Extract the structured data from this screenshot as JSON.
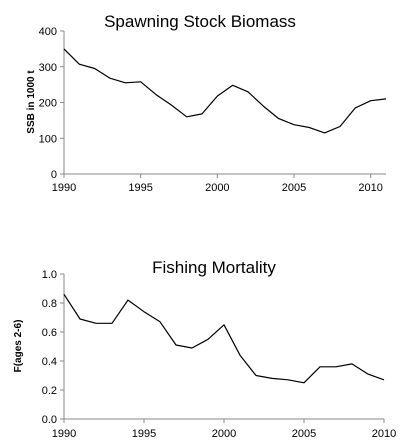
{
  "chart_data": [
    {
      "type": "line",
      "title": "Spawning Stock Biomass",
      "xlabel": "",
      "ylabel": "SSB in 1000 t",
      "xlim": [
        1990,
        2011
      ],
      "ylim": [
        0,
        400
      ],
      "x_ticks": [
        1990,
        1995,
        2000,
        2005,
        2010
      ],
      "y_ticks": [
        0,
        100,
        200,
        300,
        400
      ],
      "x_tick_labels": [
        "1990",
        "1995",
        "2000",
        "2005",
        "2010"
      ],
      "y_tick_labels": [
        "0",
        "100",
        "200",
        "300",
        "400"
      ],
      "grid": false,
      "legend": "none",
      "line_color": "#000000",
      "x": [
        1990,
        1991,
        1992,
        1993,
        1994,
        1995,
        1996,
        1997,
        1998,
        1999,
        2000,
        2001,
        2002,
        2003,
        2004,
        2005,
        2006,
        2007,
        2008,
        2009,
        2010,
        2011
      ],
      "values": [
        350,
        307,
        295,
        268,
        255,
        258,
        222,
        193,
        160,
        168,
        218,
        248,
        230,
        190,
        155,
        138,
        130,
        115,
        133,
        185,
        205,
        210
      ]
    },
    {
      "type": "line",
      "title": "Fishing Mortality",
      "xlabel": "",
      "ylabel": "F(ages 2-6)",
      "xlim": [
        1990,
        2010
      ],
      "ylim": [
        0,
        1.0
      ],
      "x_ticks": [
        1990,
        1995,
        2000,
        2005,
        2010
      ],
      "y_ticks": [
        0,
        0.2,
        0.4,
        0.6,
        0.8,
        1.0
      ],
      "x_tick_labels": [
        "1990",
        "1995",
        "2000",
        "2005",
        "2010"
      ],
      "y_tick_labels": [
        "0.0",
        "0.2",
        "0.4",
        "0.6",
        "0.8",
        "1.0"
      ],
      "grid": false,
      "legend": "none",
      "line_color": "#000000",
      "x": [
        1990,
        1991,
        1992,
        1993,
        1994,
        1995,
        1996,
        1997,
        1998,
        1999,
        2000,
        2001,
        2002,
        2003,
        2004,
        2005,
        2006,
        2007,
        2008,
        2009,
        2010
      ],
      "values": [
        0.86,
        0.69,
        0.66,
        0.66,
        0.82,
        0.74,
        0.67,
        0.51,
        0.49,
        0.55,
        0.65,
        0.44,
        0.3,
        0.28,
        0.27,
        0.25,
        0.36,
        0.36,
        0.38,
        0.31,
        0.27
      ]
    }
  ]
}
